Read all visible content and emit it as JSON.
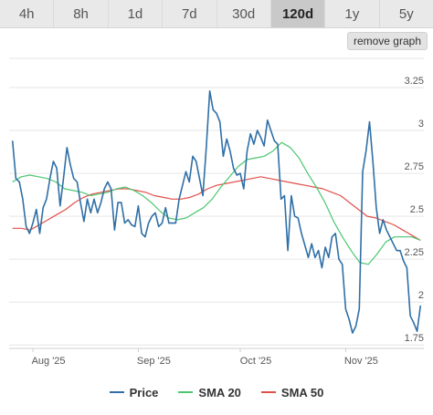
{
  "range_tabs": [
    {
      "label": "4h",
      "active": false
    },
    {
      "label": "8h",
      "active": false
    },
    {
      "label": "1d",
      "active": false
    },
    {
      "label": "7d",
      "active": false
    },
    {
      "label": "30d",
      "active": false
    },
    {
      "label": "120d",
      "active": true
    },
    {
      "label": "1y",
      "active": false
    },
    {
      "label": "5y",
      "active": false
    }
  ],
  "remove_graph_label": "remove graph",
  "colors": {
    "price": "#2f6fa6",
    "sma20": "#4cc770",
    "sma50": "#e0504a"
  },
  "chart_data": {
    "type": "line",
    "title": "",
    "xlabel": "",
    "ylabel": "",
    "x_start": "2025-07-26",
    "x_end": "2025-11-23",
    "xlim": [
      "2025-07-25",
      "2025-11-24"
    ],
    "ylim": [
      1.73,
      3.42
    ],
    "y_ticks": [
      "1.75",
      "2",
      "2.25",
      "2.5",
      "2.75",
      "3",
      "3.25"
    ],
    "x_ticks": [
      {
        "label": "Aug '25",
        "date": "2025-08-01"
      },
      {
        "label": "Sep '25",
        "date": "2025-09-01"
      },
      {
        "label": "Oct '25",
        "date": "2025-10-01"
      },
      {
        "label": "Nov '25",
        "date": "2025-11-01"
      }
    ],
    "grid": true,
    "legend_position": "bottom",
    "series": [
      {
        "name": "Price",
        "key": "price",
        "values": [
          2.94,
          2.72,
          2.7,
          2.6,
          2.44,
          2.4,
          2.46,
          2.54,
          2.4,
          2.55,
          2.6,
          2.72,
          2.82,
          2.78,
          2.56,
          2.72,
          2.9,
          2.8,
          2.72,
          2.7,
          2.58,
          2.47,
          2.6,
          2.52,
          2.6,
          2.52,
          2.58,
          2.66,
          2.7,
          2.66,
          2.42,
          2.58,
          2.58,
          2.46,
          2.48,
          2.45,
          2.44,
          2.56,
          2.4,
          2.38,
          2.46,
          2.5,
          2.52,
          2.44,
          2.46,
          2.55,
          2.46,
          2.46,
          2.46,
          2.6,
          2.68,
          2.76,
          2.7,
          2.85,
          2.82,
          2.72,
          2.62,
          2.9,
          3.23,
          3.12,
          3.1,
          3.05,
          2.85,
          2.95,
          2.88,
          2.78,
          2.74,
          2.75,
          2.66,
          2.88,
          2.98,
          2.92,
          3.0,
          2.96,
          2.91,
          3.06,
          3.0,
          2.94,
          2.92,
          2.6,
          2.62,
          2.3,
          2.62,
          2.5,
          2.49,
          2.4,
          2.33,
          2.26,
          2.34,
          2.26,
          2.3,
          2.2,
          2.32,
          2.26,
          2.38,
          2.4,
          2.25,
          2.22,
          1.96,
          1.9,
          1.82,
          1.86,
          1.96,
          2.76,
          2.88,
          3.05,
          2.82,
          2.55,
          2.4,
          2.48,
          2.42,
          2.38,
          2.34,
          2.3,
          2.3,
          2.24,
          2.2,
          1.92,
          1.88,
          1.83,
          1.98
        ]
      },
      {
        "name": "SMA 20",
        "key": "sma20",
        "values": [
          2.7,
          2.73,
          2.74,
          2.73,
          2.72,
          2.7,
          2.66,
          2.65,
          2.64,
          2.62,
          2.63,
          2.64,
          2.66,
          2.67,
          2.65,
          2.62,
          2.58,
          2.53,
          2.49,
          2.48,
          2.49,
          2.52,
          2.55,
          2.6,
          2.67,
          2.73,
          2.79,
          2.83,
          2.84,
          2.85,
          2.88,
          2.93,
          2.9,
          2.84,
          2.75,
          2.67,
          2.58,
          2.47,
          2.38,
          2.3,
          2.23,
          2.22,
          2.28,
          2.35,
          2.38,
          2.38,
          2.38,
          2.36
        ]
      },
      {
        "name": "SMA 50",
        "key": "sma50",
        "values": [
          2.43,
          2.43,
          2.42,
          2.45,
          2.48,
          2.51,
          2.54,
          2.58,
          2.61,
          2.63,
          2.64,
          2.65,
          2.66,
          2.66,
          2.65,
          2.64,
          2.62,
          2.61,
          2.6,
          2.6,
          2.61,
          2.63,
          2.66,
          2.68,
          2.69,
          2.7,
          2.71,
          2.72,
          2.73,
          2.72,
          2.71,
          2.7,
          2.69,
          2.68,
          2.67,
          2.66,
          2.64,
          2.62,
          2.58,
          2.54,
          2.5,
          2.49,
          2.47,
          2.45,
          2.42,
          2.39,
          2.36
        ]
      }
    ]
  }
}
